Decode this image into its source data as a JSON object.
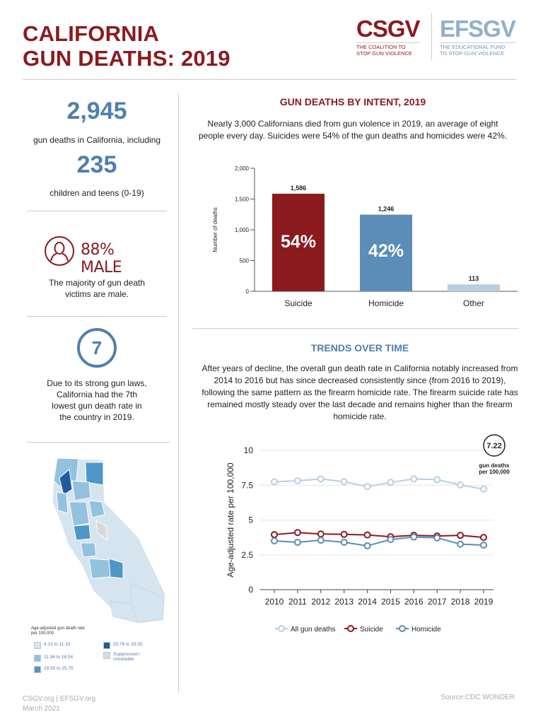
{
  "header": {
    "title_line1": "CALIFORNIA",
    "title_line2": "GUN DEATHS: 2019"
  },
  "logos": {
    "csgv": "CSGV",
    "csgv_sub1": "THE COALITION TO",
    "csgv_sub2": "STOP GUN VIOLENCE",
    "efsgv": "EFSGV",
    "efsgv_sub1": "THE EDUCATIONAL FUND",
    "efsgv_sub2": "TO STOP GUN VIOLENCE"
  },
  "sidebar": {
    "total_deaths": "2,945",
    "total_caption": "gun deaths in California, including",
    "youth_deaths": "235",
    "youth_caption": "children and teens (0-19)",
    "male_stat": "88% MALE",
    "male_caption_1": "The majority of gun death",
    "male_caption_2": "victims are male.",
    "rank": "7",
    "rank_caption_1": "Due to its strong gun laws,",
    "rank_caption_2": "California had the 7th",
    "rank_caption_3": "lowest gun death rate in",
    "rank_caption_4": "the country in 2019."
  },
  "map": {
    "legend_title_1": "Age-adjusted gun death rate",
    "legend_title_2": "per 100,000",
    "legend": [
      {
        "label": "4.13 to 11.33",
        "color": "#d6e4f0"
      },
      {
        "label": "11.34 to 18.54",
        "color": "#93c2df"
      },
      {
        "label": "18.55 to 25.75",
        "color": "#4f96c8"
      },
      {
        "label": "25.76 to 33.05",
        "color": "#1f5b9e"
      },
      {
        "label": "Suppressed / Unreliable",
        "color": "#d9d9d9"
      }
    ]
  },
  "intent": {
    "title": "GUN DEATHS BY INTENT, 2019",
    "para_1": "Nearly 3,000 Californians died from gun violence in 2019, an average of eight",
    "para_2": "people every day. Suicides were 54% of the gun deaths and homicides were 42%."
  },
  "trends": {
    "title": "TRENDS OVER TIME",
    "para_1": "After years of decline, the overall gun death rate in California notably increased from",
    "para_2": "2014 to 2016 but has since decreased consistently since (from 2016 to 2019),",
    "para_3": "following the same pattern as the firearm homicide rate. The firearm suicide rate has",
    "para_4": "remained mostly steady over the last decade and remains higher than the firearm",
    "para_5": "homicide rate.",
    "callout_value": "7.22",
    "callout_1": "gun deaths",
    "callout_2": "per 100,000"
  },
  "footer": {
    "left_1": "CSGV.org | EFSGV.org",
    "left_2": "March 2021",
    "source": "Source:CDC WONDER"
  },
  "chart_data": [
    {
      "type": "bar",
      "title": "GUN DEATHS BY INTENT, 2019",
      "ylabel": "Number of deaths",
      "categories": [
        "Suicide",
        "Homicide",
        "Other"
      ],
      "values": [
        1586,
        1246,
        113
      ],
      "data_labels": [
        "1,586",
        "1,246",
        "113"
      ],
      "percent_labels": [
        "54%",
        "42%",
        ""
      ],
      "colors": [
        "#8b1a1e",
        "#5b8db8",
        "#b9cfe0"
      ],
      "ylim": [
        0,
        2000
      ],
      "yticks": [
        0,
        500,
        1000,
        1500,
        2000
      ],
      "ytick_labels": [
        "0",
        "500",
        "1,000",
        "1,500",
        "2,000"
      ]
    },
    {
      "type": "line",
      "title": "TRENDS OVER TIME",
      "ylabel": "Age-adjusted rate per 100,000",
      "x": [
        2010,
        2011,
        2012,
        2013,
        2014,
        2015,
        2016,
        2017,
        2018,
        2019
      ],
      "ylim": [
        0,
        10
      ],
      "yticks": [
        0,
        2.5,
        5,
        7.5,
        10
      ],
      "ytick_labels": [
        "0",
        "2.5",
        "5",
        "7.5",
        "10"
      ],
      "legend_position": "bottom",
      "series": [
        {
          "name": "All gun deaths",
          "color": "#b9cfe0",
          "values": [
            7.75,
            7.82,
            7.95,
            7.75,
            7.4,
            7.7,
            7.95,
            7.9,
            7.52,
            7.22
          ]
        },
        {
          "name": "Suicide",
          "color": "#8b1a1e",
          "values": [
            3.95,
            4.1,
            4.0,
            3.97,
            3.93,
            3.8,
            3.9,
            3.85,
            3.9,
            3.75
          ]
        },
        {
          "name": "Homicide",
          "color": "#5b8db8",
          "values": [
            3.5,
            3.4,
            3.55,
            3.4,
            3.15,
            3.6,
            3.78,
            3.72,
            3.27,
            3.2
          ]
        }
      ]
    }
  ]
}
